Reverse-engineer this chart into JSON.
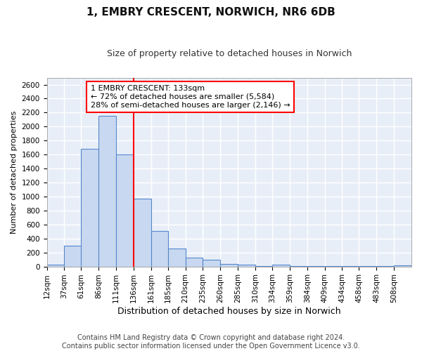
{
  "title": "1, EMBRY CRESCENT, NORWICH, NR6 6DB",
  "subtitle": "Size of property relative to detached houses in Norwich",
  "xlabel": "Distribution of detached houses by size in Norwich",
  "ylabel": "Number of detached properties",
  "footer1": "Contains HM Land Registry data © Crown copyright and database right 2024.",
  "footer2": "Contains public sector information licensed under the Open Government Licence v3.0.",
  "annotation_line1": "1 EMBRY CRESCENT: 133sqm",
  "annotation_line2": "← 72% of detached houses are smaller (5,584)",
  "annotation_line3": "28% of semi-detached houses are larger (2,146) →",
  "bar_color": "#c8d8f0",
  "bar_edge_color": "#5588cc",
  "red_line_x": 136,
  "categories": [
    "12sqm",
    "37sqm",
    "61sqm",
    "86sqm",
    "111sqm",
    "136sqm",
    "161sqm",
    "185sqm",
    "210sqm",
    "235sqm",
    "260sqm",
    "285sqm",
    "310sqm",
    "334sqm",
    "359sqm",
    "384sqm",
    "409sqm",
    "434sqm",
    "458sqm",
    "483sqm",
    "508sqm"
  ],
  "bin_edges": [
    12,
    37,
    61,
    86,
    111,
    136,
    161,
    185,
    210,
    235,
    260,
    285,
    310,
    334,
    359,
    384,
    409,
    434,
    458,
    483,
    508,
    533
  ],
  "values": [
    25,
    300,
    1680,
    2150,
    1600,
    970,
    510,
    255,
    130,
    100,
    35,
    25,
    5,
    25,
    5,
    5,
    5,
    5,
    5,
    5,
    20
  ],
  "ylim": [
    0,
    2700
  ],
  "yticks": [
    0,
    200,
    400,
    600,
    800,
    1000,
    1200,
    1400,
    1600,
    1800,
    2000,
    2200,
    2400,
    2600
  ],
  "fig_bg_color": "#ffffff",
  "plot_bg_color": "#e8eef8",
  "grid_color": "#ffffff",
  "title_fontsize": 11,
  "subtitle_fontsize": 9,
  "xlabel_fontsize": 9,
  "ylabel_fontsize": 8,
  "tick_fontsize": 7.5,
  "footer_fontsize": 7
}
